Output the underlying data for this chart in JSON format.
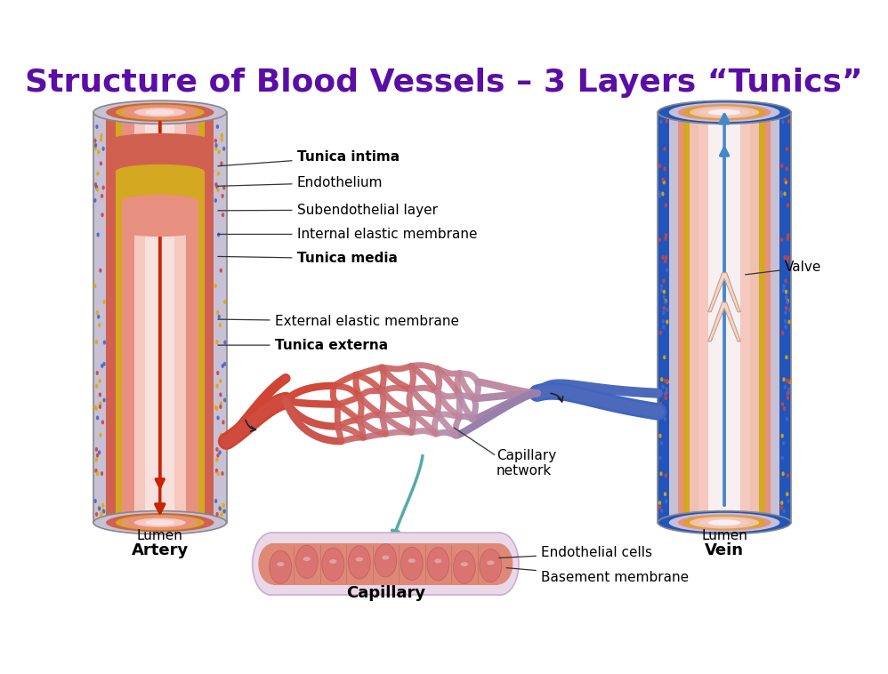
{
  "title": "Structure of Blood Vessels – 3 Layers “Tunics”",
  "title_color": "#5B0EA6",
  "title_fontsize": 26,
  "bg_color": "#ffffff",
  "labels": {
    "tunica_intima": "Tunica intima",
    "endothelium": "Endothelium",
    "subendothelial": "Subendothelial layer",
    "internal_elastic": "Internal elastic membrane",
    "tunica_media": "Tunica media",
    "external_elastic": "External elastic membrane",
    "tunica_externa": "Tunica externa",
    "lumen_artery": "Lumen",
    "artery": "Artery",
    "lumen_vein": "Lumen",
    "vein": "Vein",
    "capillary_network": "Capillary\nnetwork",
    "capillary": "Capillary",
    "valve": "Valve",
    "basement_membrane": "Basement membrane",
    "endothelial_cells": "Endothelial cells"
  },
  "colors": {
    "tunica_externa_gray": "#C8C0D5",
    "tunica_externa_red": "#D06050",
    "tunica_media_pink": "#E89080",
    "elastic_gold": "#D4A820",
    "intima_light": "#F0C0B0",
    "lumen_pink": "#F5C8C0",
    "artery_red": "#CC2200",
    "vein_blue": "#2255BB",
    "vein_blue_light": "#4488CC",
    "vein_lumen_light": "#F0EEF8",
    "cap_net_red": "#CC4433",
    "cap_net_blue": "#3355AA",
    "cap_net_mid": "#9988BB",
    "cap_tube_outer": "#DDD0D8",
    "cap_tube_inner": "#F0B0A0",
    "cap_cell_red": "#CC3322",
    "dot_red": "#CC4444",
    "dot_blue": "#4466CC",
    "dot_yellow": "#DDAA00"
  }
}
